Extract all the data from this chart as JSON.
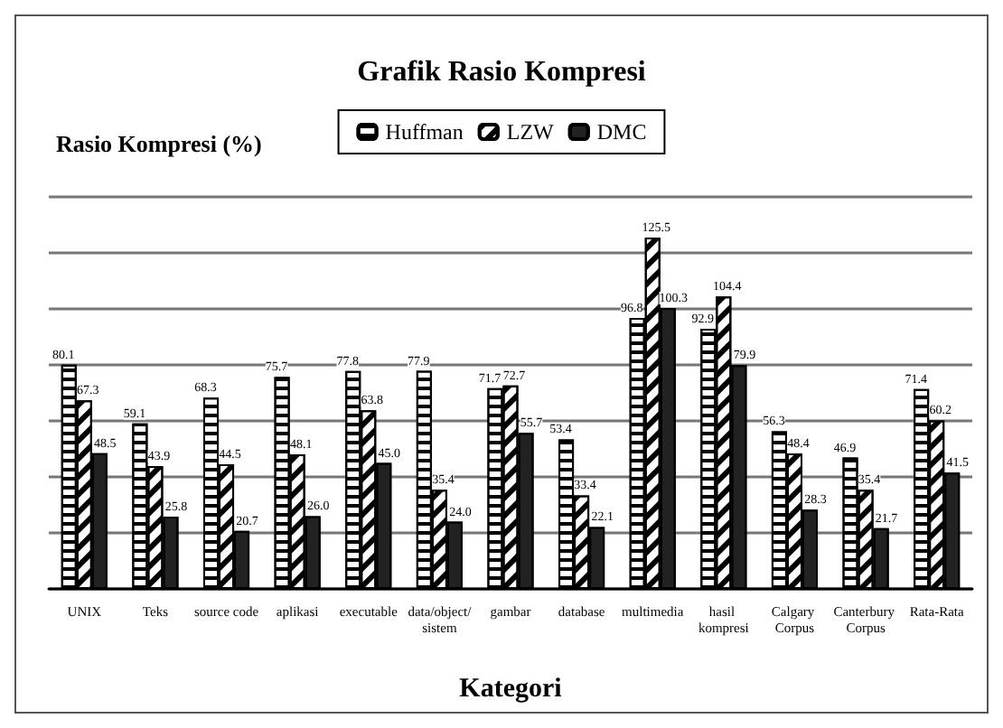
{
  "chart_data": {
    "type": "bar",
    "title": "Grafik Rasio Kompresi",
    "xlabel": "Kategori",
    "ylabel": "Rasio Kompresi (%)",
    "categories": [
      "UNIX",
      "Teks",
      "source code",
      "aplikasi",
      "executable",
      "data/object/sistem",
      "gambar",
      "database",
      "multimedia",
      "hasil kompresi",
      "Calgary Corpus",
      "Canterbury Corpus",
      "Rata-Rata"
    ],
    "series": [
      {
        "name": "Huffman",
        "color": "#ffffff",
        "values": [
          80.1,
          59.1,
          68.3,
          75.7,
          77.8,
          77.9,
          71.7,
          53.4,
          96.8,
          92.9,
          56.3,
          46.9,
          71.4
        ]
      },
      {
        "name": "LZW",
        "color": "#ffffff",
        "values": [
          67.3,
          43.9,
          44.5,
          48.1,
          63.8,
          35.4,
          72.7,
          33.4,
          125.5,
          104.4,
          48.4,
          35.4,
          60.2
        ]
      },
      {
        "name": "DMC",
        "color": "#222222",
        "values": [
          48.5,
          25.8,
          20.7,
          26.0,
          45.0,
          24.0,
          55.7,
          22.1,
          100.3,
          79.9,
          28.3,
          21.7,
          41.5
        ],
        "value_labels": [
          "48.5",
          "25.8",
          "20.7",
          "26.0",
          "45.0",
          "24.0",
          "55.7",
          "22.1",
          "100.3",
          "79.9",
          "28.3",
          "21.7",
          "41.5"
        ]
      }
    ],
    "ylim": [
      0,
      140
    ],
    "yticks": [
      {
        "value": 0,
        "label": null
      },
      {
        "value": 20,
        "label": null
      },
      {
        "value": 40,
        "label": null
      },
      {
        "value": 60,
        "label": null
      },
      {
        "value": 80,
        "label": null
      },
      {
        "value": 100,
        "label": null
      },
      {
        "value": 120,
        "label": null
      },
      {
        "value": 140,
        "label": null
      }
    ],
    "grid": "y",
    "legend": "top",
    "data_labels": true
  }
}
